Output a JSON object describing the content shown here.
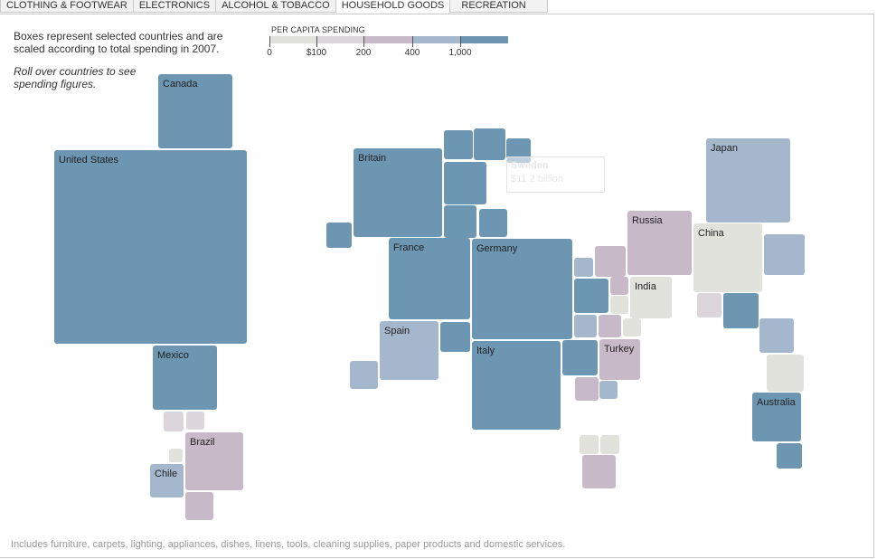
{
  "tabs": [
    {
      "label": "CLOTHING & FOOTWEAR",
      "active": false
    },
    {
      "label": "ELECTRONICS",
      "active": false
    },
    {
      "label": "ALCOHOL & TOBACCO",
      "active": false
    },
    {
      "label": "HOUSEHOLD GOODS",
      "active": true
    },
    {
      "label": "RECREATION",
      "active": false
    }
  ],
  "description": "Boxes represent selected countries and are scaled according to total spending in 2007.",
  "hint": "Roll over countries to see spending figures.",
  "legend": {
    "title": "PER CAPITA SPENDING",
    "labels": [
      "0",
      "$100",
      "200",
      "400",
      "1,000"
    ],
    "colors": [
      "#e2e2dc",
      "#dcd5dc",
      "#c8b9c9",
      "#a5b7cc",
      "#6d96b2"
    ]
  },
  "tooltip": {
    "name": "Sweden",
    "value": "$11.2 billion"
  },
  "chart_data": {
    "type": "treemap",
    "title": "",
    "measure": "total spending on household goods in 2007",
    "color_measure": "per capita spending",
    "color_bins": [
      "0-100",
      "100-200",
      "200-400",
      "400-1,000",
      "1,000+"
    ],
    "labeled_countries": [
      {
        "name": "Canada",
        "color_bin": 4
      },
      {
        "name": "United States",
        "color_bin": 4
      },
      {
        "name": "Mexico",
        "color_bin": 4
      },
      {
        "name": "Brazil",
        "color_bin": 2
      },
      {
        "name": "Chile",
        "color_bin": 3
      },
      {
        "name": "Britain",
        "color_bin": 4
      },
      {
        "name": "France",
        "color_bin": 4
      },
      {
        "name": "Germany",
        "color_bin": 4
      },
      {
        "name": "Spain",
        "color_bin": 3
      },
      {
        "name": "Italy",
        "color_bin": 4
      },
      {
        "name": "Russia",
        "color_bin": 2
      },
      {
        "name": "India",
        "color_bin": 0
      },
      {
        "name": "Turkey",
        "color_bin": 2
      },
      {
        "name": "China",
        "color_bin": 0
      },
      {
        "name": "Japan",
        "color_bin": 3
      },
      {
        "name": "Australia",
        "color_bin": 4
      },
      {
        "name": "Sweden",
        "value": "$11.2 billion"
      }
    ]
  },
  "footnote": "Includes furniture, carpets, lighting, appliances, dishes, linens, tools, cleaning supplies, paper products and domestic services."
}
